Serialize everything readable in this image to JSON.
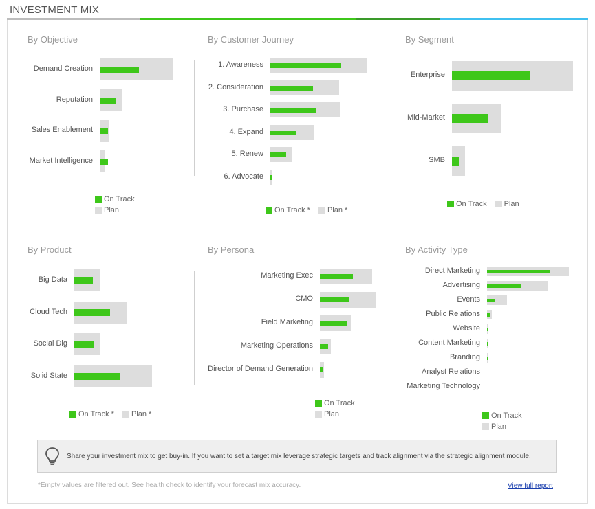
{
  "header": {
    "title": "INVESTMENT MIX",
    "bar_colors": [
      "#bdbdbd",
      "#3ec71a",
      "#3a9a2a",
      "#3fc0f0"
    ]
  },
  "colors": {
    "on_track": "#3ec71a",
    "plan": "#dddddd"
  },
  "panels": [
    {
      "id": "objective",
      "title": "By Objective",
      "rows": [
        {
          "label": "Demand Creation",
          "plan": 100,
          "on_track": 54
        },
        {
          "label": "Reputation",
          "plan": 31,
          "on_track": 23
        },
        {
          "label": "Sales Enablement",
          "plan": 13,
          "on_track": 11
        },
        {
          "label": "Market Intelligence",
          "plan": 7,
          "on_track": 11
        }
      ],
      "legend": [
        "On Track",
        "Plan"
      ]
    },
    {
      "id": "journey",
      "title": "By Customer Journey",
      "rows": [
        {
          "label": "1. Awareness",
          "plan": 100,
          "on_track": 73
        },
        {
          "label": "2. Consideration",
          "plan": 71,
          "on_track": 44
        },
        {
          "label": "3. Purchase",
          "plan": 72,
          "on_track": 47
        },
        {
          "label": "4. Expand",
          "plan": 45,
          "on_track": 26
        },
        {
          "label": "5. Renew",
          "plan": 23,
          "on_track": 16
        },
        {
          "label": "6. Advocate",
          "plan": 2,
          "on_track": 2
        }
      ],
      "legend": [
        "On Track *",
        "Plan *"
      ]
    },
    {
      "id": "segment",
      "title": "By Segment",
      "rows": [
        {
          "label": "Enterprise",
          "plan": 100,
          "on_track": 64
        },
        {
          "label": "Mid-Market",
          "plan": 41,
          "on_track": 30
        },
        {
          "label": "SMB",
          "plan": 11,
          "on_track": 6
        }
      ],
      "legend": [
        "On Track",
        "Plan"
      ]
    },
    {
      "id": "product",
      "title": "By Product",
      "rows": [
        {
          "label": "Big Data",
          "plan": 33,
          "on_track": 24
        },
        {
          "label": "Cloud Tech",
          "plan": 67,
          "on_track": 46
        },
        {
          "label": "Social Dig",
          "plan": 33,
          "on_track": 25
        },
        {
          "label": "Solid State",
          "plan": 100,
          "on_track": 58
        }
      ],
      "legend": [
        "On Track *",
        "Plan *"
      ]
    },
    {
      "id": "persona",
      "title": "By Persona",
      "rows": [
        {
          "label": "Marketing Exec",
          "plan": 93,
          "on_track": 58
        },
        {
          "label": "CMO",
          "plan": 100,
          "on_track": 51
        },
        {
          "label": "Field Marketing",
          "plan": 55,
          "on_track": 48
        },
        {
          "label": "Marketing Operations",
          "plan": 19,
          "on_track": 15
        },
        {
          "label": "Director of Demand Generation",
          "plan": 7,
          "on_track": 6
        }
      ],
      "legend": [
        "On Track",
        "Plan"
      ]
    },
    {
      "id": "activity",
      "title": "By Activity Type",
      "rows": [
        {
          "label": "Direct Marketing",
          "plan": 100,
          "on_track": 77
        },
        {
          "label": "Advertising",
          "plan": 74,
          "on_track": 42
        },
        {
          "label": "Events",
          "plan": 24,
          "on_track": 10
        },
        {
          "label": "Public Relations",
          "plan": 6,
          "on_track": 4
        },
        {
          "label": "Website",
          "plan": 1,
          "on_track": 1
        },
        {
          "label": "Content Marketing",
          "plan": 1,
          "on_track": 1
        },
        {
          "label": "Branding",
          "plan": 1,
          "on_track": 1
        },
        {
          "label": "Analyst Relations",
          "plan": 0,
          "on_track": 0
        },
        {
          "label": "Marketing Technology",
          "plan": 0,
          "on_track": 0
        }
      ],
      "legend": [
        "On Track",
        "Plan"
      ]
    }
  ],
  "tip": {
    "icon": "lightbulb-icon",
    "text": "Share your investment mix to get buy-in. If you want to set a target mix leverage strategic targets and track alignment via the strategic alignment module."
  },
  "footer": {
    "note": "*Empty values are filtered out. See health check to identify your forecast mix accuracy.",
    "link": "View full report"
  }
}
